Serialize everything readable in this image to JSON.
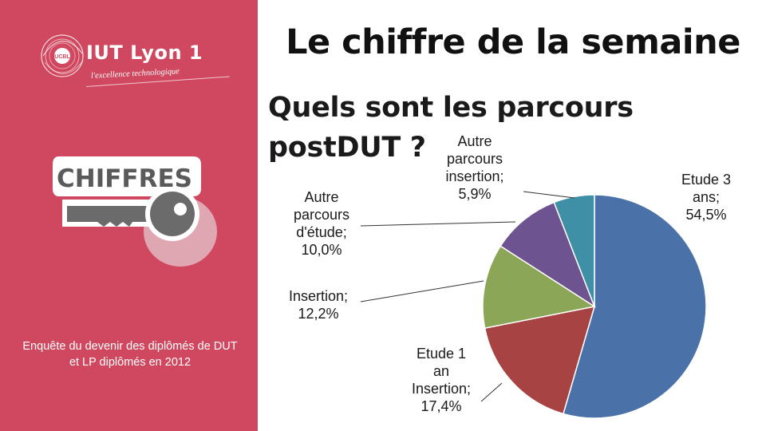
{
  "sidebar": {
    "logo_text": "IUT Lyon 1",
    "logo_badge": "UCBL",
    "logo_tagline": "l'excellence technologique",
    "badge_text": "CHIFFRES",
    "footnote": "Enquête du devenir des diplômés de DUT et LP diplômés en 2012",
    "bg_color": "#d0485f"
  },
  "header": {
    "title": "Le chiffre de la semaine"
  },
  "chart_data": {
    "type": "pie",
    "title": "Quels sont les parcours postDUT  ?",
    "unit": "%",
    "slices": [
      {
        "name": "Etude 3 ans",
        "value": 54.5,
        "label_lines": [
          "Etude 3",
          "ans;",
          "54,5%"
        ],
        "color": "#4a71a8"
      },
      {
        "name": "Etude 1 an Insertion",
        "value": 17.4,
        "label_lines": [
          "Etude 1",
          "an",
          "Insertion;",
          "17,4%"
        ],
        "color": "#a84343"
      },
      {
        "name": "Insertion",
        "value": 12.2,
        "label_lines": [
          "Insertion;",
          "12,2%"
        ],
        "color": "#8aa656"
      },
      {
        "name": "Autre parcours d'étude",
        "value": 10.0,
        "label_lines": [
          "Autre",
          "parcours",
          "d'étude;",
          "10,0%"
        ],
        "color": "#6d5390"
      },
      {
        "name": "Autre parcours insertion",
        "value": 5.9,
        "label_lines": [
          "Autre",
          "parcours",
          "insertion;",
          "5,9%"
        ],
        "color": "#3f8fa6"
      }
    ]
  }
}
